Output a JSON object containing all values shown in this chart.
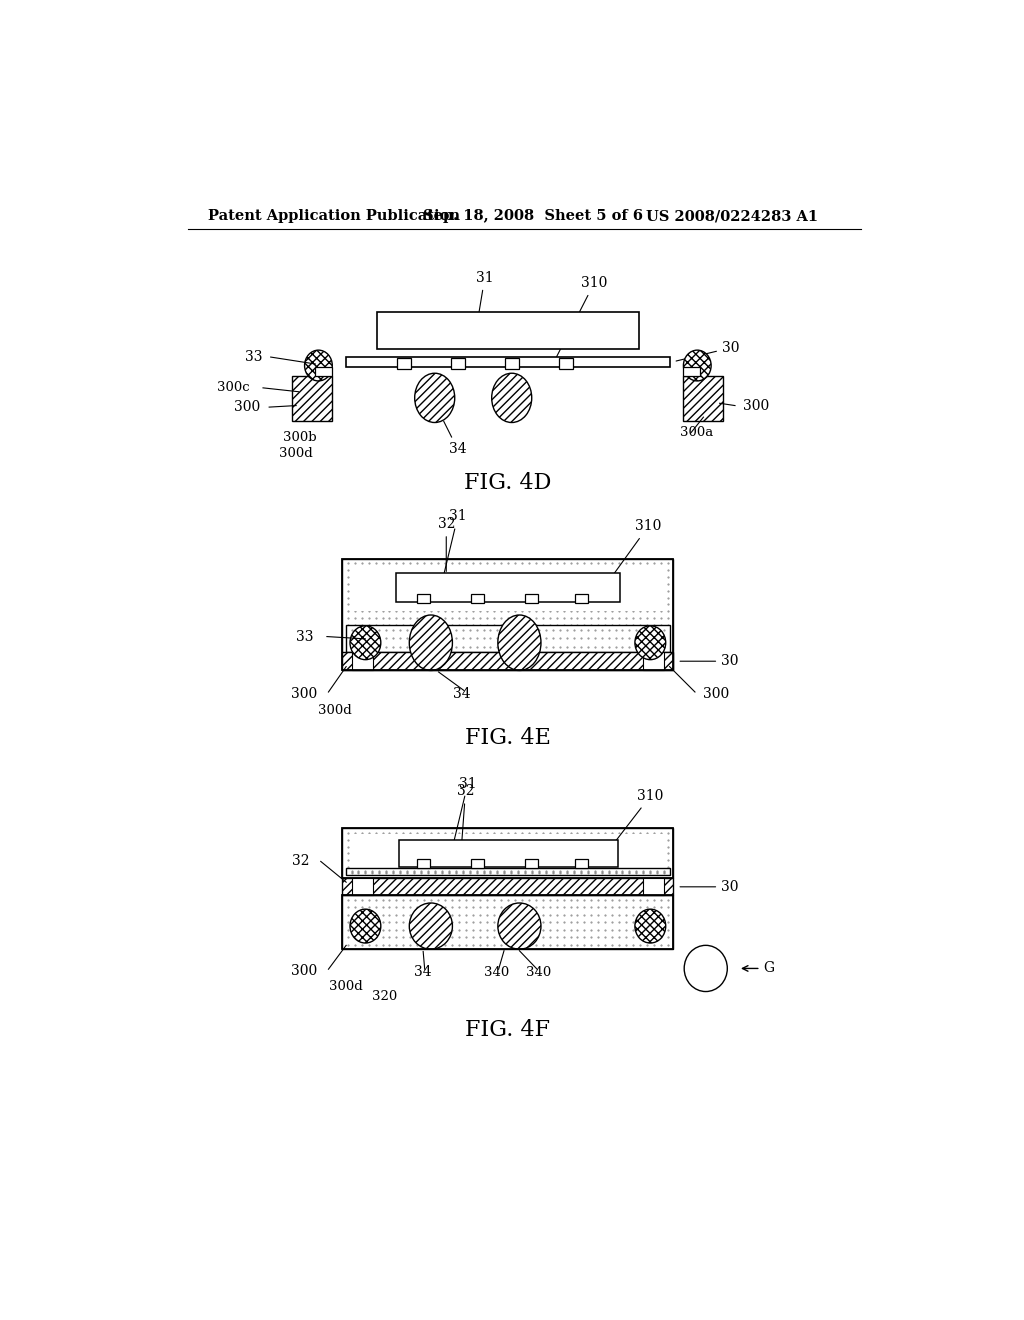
{
  "bg_color": "#ffffff",
  "header_left": "Patent Application Publication",
  "header_mid": "Sep. 18, 2008  Sheet 5 of 6",
  "header_right": "US 2008/0224283 A1",
  "fig4d_label": "FIG. 4D",
  "fig4e_label": "FIG. 4E",
  "fig4f_label": "FIG. 4F"
}
